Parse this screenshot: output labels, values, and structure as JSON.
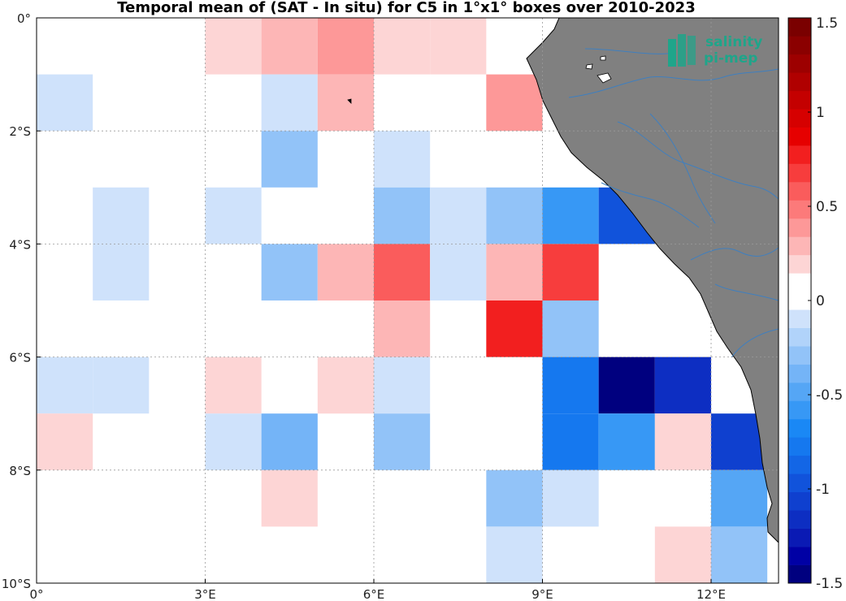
{
  "title": "Temporal mean of (SAT - In situ) for C5 in 1°x1° boxes over 2010-2023",
  "logo": {
    "line1": "salinity",
    "line2": "pi-mep"
  },
  "colors": {
    "land": "#808080",
    "river": "#3f7fbf",
    "grid": "#9a9a9a",
    "colormap": [
      "#00007f",
      "#0000a5",
      "#0a1ab4",
      "#0d2ec2",
      "#0f40cf",
      "#1153db",
      "#1366e6",
      "#1578ef",
      "#1a88f5",
      "#3798f5",
      "#55a6f5",
      "#74b4f7",
      "#92c3f8",
      "#b1d3fa",
      "#cfe2fb",
      "#ffffff",
      "#ffffff",
      "#fdd5d5",
      "#fdb6b6",
      "#fd9898",
      "#fc7a7a",
      "#fa5c5c",
      "#f73d3d",
      "#f21f1f",
      "#e60000",
      "#d60000",
      "#c40000",
      "#b00000",
      "#9d0000",
      "#8b0000",
      "#7a0000"
    ]
  },
  "chart_data": {
    "type": "heatmap",
    "title": "Temporal mean of (SAT - In situ) for C5 in 1°x1° boxes over 2010-2023",
    "xlim": [
      0,
      13.2
    ],
    "ylim": [
      -10,
      0
    ],
    "x_ticks": [
      {
        "value": 0,
        "label": "0°"
      },
      {
        "value": 3,
        "label": "3°E"
      },
      {
        "value": 6,
        "label": "6°E"
      },
      {
        "value": 9,
        "label": "9°E"
      },
      {
        "value": 12,
        "label": "12°E"
      }
    ],
    "y_ticks": [
      {
        "value": 0,
        "label": "0°"
      },
      {
        "value": -2,
        "label": "2°S"
      },
      {
        "value": -4,
        "label": "4°S"
      },
      {
        "value": -6,
        "label": "6°S"
      },
      {
        "value": -8,
        "label": "8°S"
      },
      {
        "value": -10,
        "label": "10°S"
      }
    ],
    "grid": true,
    "colorbar": {
      "range": [
        -1.5,
        1.5
      ],
      "ticks": [
        {
          "value": 1.5,
          "label": "1.5"
        },
        {
          "value": 1,
          "label": "1"
        },
        {
          "value": 0.5,
          "label": "0.5"
        },
        {
          "value": 0,
          "label": "0"
        },
        {
          "value": -0.5,
          "label": "-0.5"
        },
        {
          "value": -1,
          "label": "-1"
        },
        {
          "value": -1.5,
          "label": "-1.5"
        }
      ]
    },
    "cells": [
      {
        "lon": 3,
        "lat": 0,
        "value": 0.15
      },
      {
        "lon": 4,
        "lat": 0,
        "value": 0.3
      },
      {
        "lon": 5,
        "lat": 0,
        "value": 0.4
      },
      {
        "lon": 6,
        "lat": 0,
        "value": 0.15
      },
      {
        "lon": 7,
        "lat": 0,
        "value": 0.15
      },
      {
        "lon": 0,
        "lat": -1,
        "value": -0.1
      },
      {
        "lon": 4,
        "lat": -1,
        "value": -0.1
      },
      {
        "lon": 5,
        "lat": -1,
        "value": 0.3
      },
      {
        "lon": 8,
        "lat": -1,
        "value": 0.4
      },
      {
        "lon": 4,
        "lat": -2,
        "value": -0.25
      },
      {
        "lon": 6,
        "lat": -2,
        "value": -0.1
      },
      {
        "lon": 1,
        "lat": -3,
        "value": -0.1
      },
      {
        "lon": 3,
        "lat": -3,
        "value": -0.1
      },
      {
        "lon": 6,
        "lat": -3,
        "value": -0.25
      },
      {
        "lon": 7,
        "lat": -3,
        "value": -0.1
      },
      {
        "lon": 8,
        "lat": -3,
        "value": -0.25
      },
      {
        "lon": 9,
        "lat": -3,
        "value": -0.55
      },
      {
        "lon": 10,
        "lat": -3,
        "value": -1.0
      },
      {
        "lon": 1,
        "lat": -4,
        "value": -0.1
      },
      {
        "lon": 4,
        "lat": -4,
        "value": -0.25
      },
      {
        "lon": 5,
        "lat": -4,
        "value": 0.3
      },
      {
        "lon": 6,
        "lat": -4,
        "value": 0.55
      },
      {
        "lon": 7,
        "lat": -4,
        "value": -0.1
      },
      {
        "lon": 8,
        "lat": -4,
        "value": 0.3
      },
      {
        "lon": 9,
        "lat": -4,
        "value": 0.65
      },
      {
        "lon": 6,
        "lat": -5,
        "value": 0.3
      },
      {
        "lon": 8,
        "lat": -5,
        "value": 0.75
      },
      {
        "lon": 9,
        "lat": -5,
        "value": -0.25
      },
      {
        "lon": 0,
        "lat": -6,
        "value": -0.1
      },
      {
        "lon": 1,
        "lat": -6,
        "value": -0.1
      },
      {
        "lon": 3,
        "lat": -6,
        "value": 0.15
      },
      {
        "lon": 5,
        "lat": -6,
        "value": 0.15
      },
      {
        "lon": 6,
        "lat": -6,
        "value": -0.1
      },
      {
        "lon": 9,
        "lat": -6,
        "value": -0.75
      },
      {
        "lon": 10,
        "lat": -6,
        "value": -1.5
      },
      {
        "lon": 11,
        "lat": -6,
        "value": -1.2
      },
      {
        "lon": 0,
        "lat": -7,
        "value": 0.15
      },
      {
        "lon": 3,
        "lat": -7,
        "value": -0.1
      },
      {
        "lon": 4,
        "lat": -7,
        "value": -0.4
      },
      {
        "lon": 6,
        "lat": -7,
        "value": -0.25
      },
      {
        "lon": 9,
        "lat": -7,
        "value": -0.75
      },
      {
        "lon": 10,
        "lat": -7,
        "value": -0.6
      },
      {
        "lon": 11,
        "lat": -7,
        "value": 0.15
      },
      {
        "lon": 12,
        "lat": -7,
        "value": -1.1
      },
      {
        "lon": 4,
        "lat": -8,
        "value": 0.15
      },
      {
        "lon": 8,
        "lat": -8,
        "value": -0.25
      },
      {
        "lon": 9,
        "lat": -8,
        "value": -0.1
      },
      {
        "lon": 12,
        "lat": -8,
        "value": -0.5
      },
      {
        "lon": 8,
        "lat": -9,
        "value": -0.1
      },
      {
        "lon": 11,
        "lat": -9,
        "value": 0.15
      },
      {
        "lon": 12,
        "lat": -9,
        "value": -0.25
      }
    ]
  }
}
